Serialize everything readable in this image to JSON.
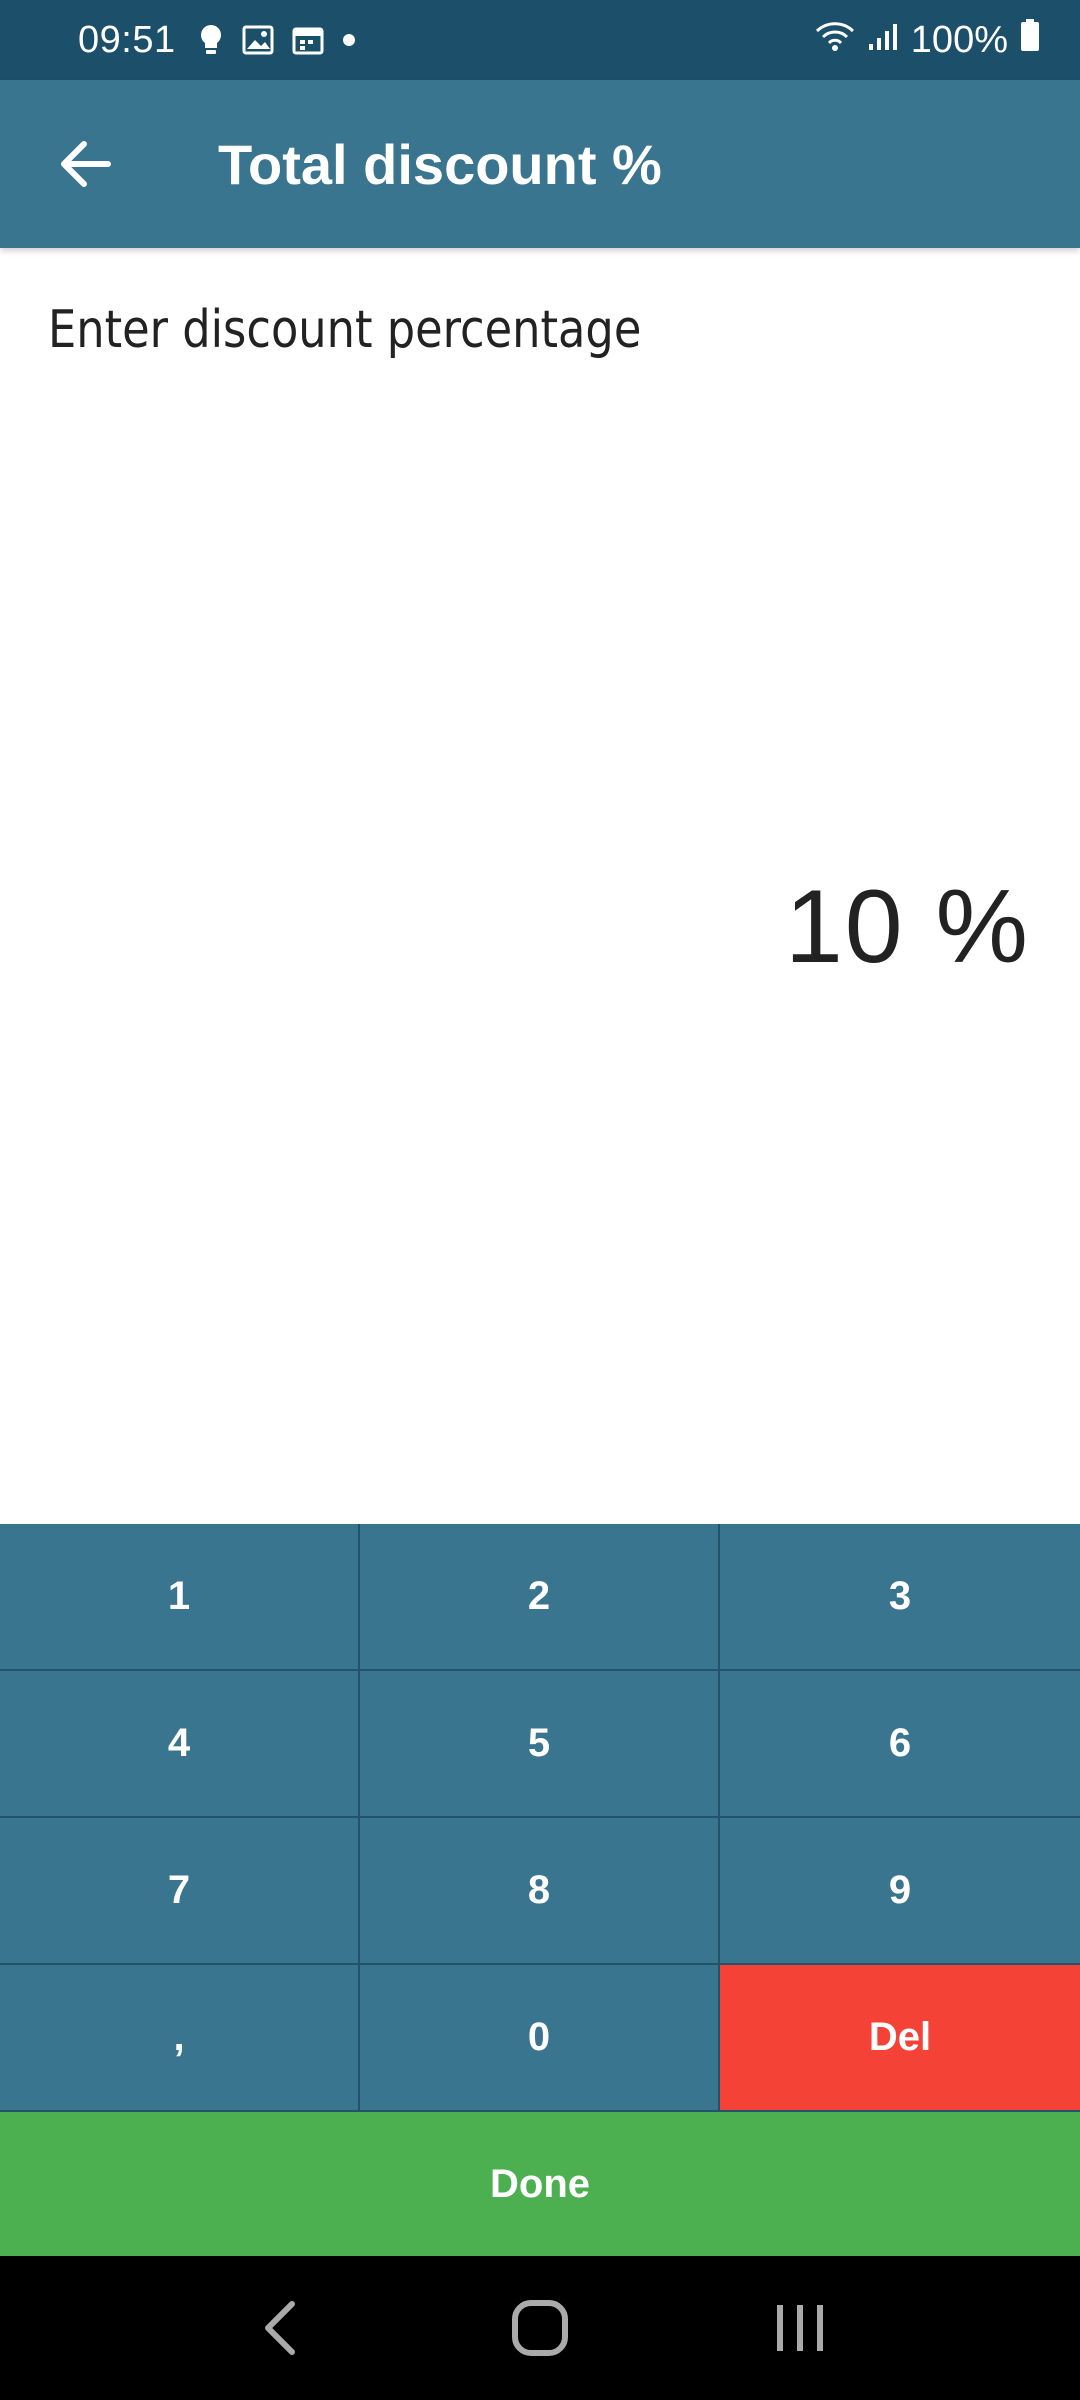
{
  "status_bar": {
    "time": "09:51",
    "battery": "100%",
    "notification_icons": [
      "bulb-icon",
      "image-icon",
      "calendar-icon",
      "dot-icon"
    ]
  },
  "app_bar": {
    "title": "Total discount %"
  },
  "content": {
    "prompt": "Enter discount percentage",
    "value": "10 %"
  },
  "keypad": {
    "keys": [
      "1",
      "2",
      "3",
      "4",
      "5",
      "6",
      "7",
      "8",
      "9",
      ",",
      "0",
      "Del"
    ]
  },
  "done_label": "Done",
  "colors": {
    "status_bar": "#1c4f6a",
    "primary": "#3a7590",
    "delete": "#f44336",
    "done": "#4caf50"
  }
}
